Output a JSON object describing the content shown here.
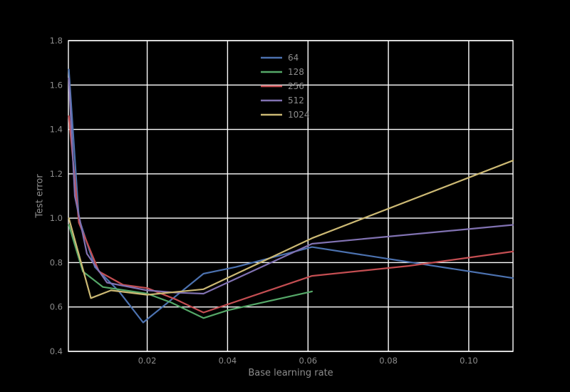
{
  "figure": {
    "background": "#000000",
    "text_color": "#8c8c8c"
  },
  "chart_data": {
    "type": "line",
    "xlabel": "Base learning rate",
    "ylabel": "Test error",
    "xlim": [
      0.0004,
      0.111
    ],
    "ylim": [
      0.4,
      1.8
    ],
    "xticks": [
      0.02,
      0.04,
      0.06,
      0.08,
      0.1
    ],
    "xtick_labels": [
      "0.02",
      "0.04",
      "0.06",
      "0.08",
      "0.10"
    ],
    "yticks": [
      0.4,
      0.6,
      0.8,
      1.0,
      1.2,
      1.4,
      1.6,
      1.8
    ],
    "ytick_labels": [
      "0.4",
      "0.6",
      "0.8",
      "1.0",
      "1.2",
      "1.4",
      "1.6",
      "1.8"
    ],
    "grid": true,
    "grid_color": "#ffffff",
    "text_color": "#8c8c8c",
    "legend": {
      "position": "upper center",
      "entries": [
        "64",
        "128",
        "256",
        "512",
        "1024"
      ]
    },
    "series": [
      {
        "name": "64",
        "color": "#4C72B0",
        "points": [
          [
            0.0005,
            1.67
          ],
          [
            0.003,
            1.0
          ],
          [
            0.007,
            0.78
          ],
          [
            0.013,
            0.67
          ],
          [
            0.019,
            0.53
          ],
          [
            0.034,
            0.75
          ],
          [
            0.042,
            0.78
          ],
          [
            0.061,
            0.87
          ],
          [
            0.111,
            0.73
          ]
        ]
      },
      {
        "name": "128",
        "color": "#55A868",
        "points": [
          [
            0.0005,
            0.97
          ],
          [
            0.004,
            0.76
          ],
          [
            0.009,
            0.69
          ],
          [
            0.02,
            0.66
          ],
          [
            0.026,
            0.62
          ],
          [
            0.034,
            0.55
          ],
          [
            0.04,
            0.585
          ],
          [
            0.061,
            0.67
          ]
        ]
      },
      {
        "name": "256",
        "color": "#C44E52",
        "points": [
          [
            0.0005,
            1.46
          ],
          [
            0.003,
            0.98
          ],
          [
            0.008,
            0.76
          ],
          [
            0.014,
            0.7
          ],
          [
            0.02,
            0.685
          ],
          [
            0.027,
            0.635
          ],
          [
            0.034,
            0.575
          ],
          [
            0.061,
            0.74
          ],
          [
            0.085,
            0.785
          ],
          [
            0.111,
            0.85
          ]
        ]
      },
      {
        "name": "512",
        "color": "#8172B2",
        "points": [
          [
            0.0005,
            1.63
          ],
          [
            0.002,
            1.1
          ],
          [
            0.005,
            0.84
          ],
          [
            0.01,
            0.71
          ],
          [
            0.02,
            0.675
          ],
          [
            0.027,
            0.665
          ],
          [
            0.034,
            0.66
          ],
          [
            0.061,
            0.885
          ],
          [
            0.111,
            0.97
          ]
        ]
      },
      {
        "name": "1024",
        "color": "#CCB974",
        "points": [
          [
            0.0005,
            1.0
          ],
          [
            0.006,
            0.64
          ],
          [
            0.011,
            0.675
          ],
          [
            0.02,
            0.655
          ],
          [
            0.034,
            0.68
          ],
          [
            0.061,
            0.91
          ],
          [
            0.111,
            1.26
          ]
        ]
      }
    ]
  }
}
